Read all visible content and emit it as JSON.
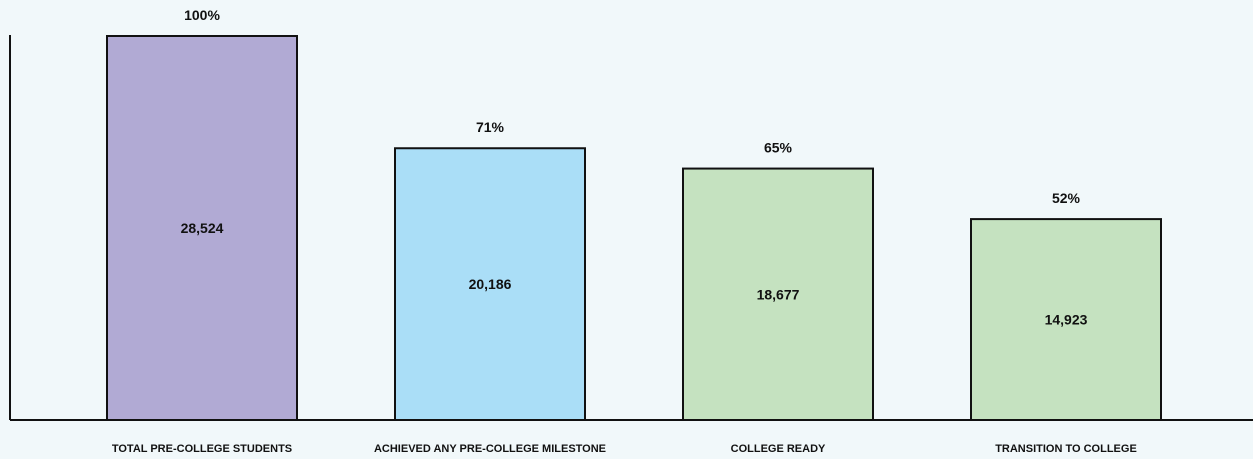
{
  "chart_data": {
    "type": "bar",
    "title": "",
    "xlabel": "",
    "ylabel": "",
    "ylim": [
      0,
      28524
    ],
    "grid": false,
    "categories": [
      "TOTAL PRE-COLLEGE STUDENTS",
      "ACHIEVED ANY PRE-COLLEGE MILESTONE",
      "COLLEGE READY",
      "TRANSITION TO COLLEGE"
    ],
    "values": [
      28524,
      20186,
      18677,
      14923
    ],
    "value_labels": [
      "28,524",
      "20,186",
      "18,677",
      "14,923"
    ],
    "percent_labels": [
      "100%",
      "71%",
      "65%",
      "52%"
    ],
    "colors": [
      "#b1aad4",
      "#aadef7",
      "#c5e2c0",
      "#c5e2c0"
    ]
  }
}
